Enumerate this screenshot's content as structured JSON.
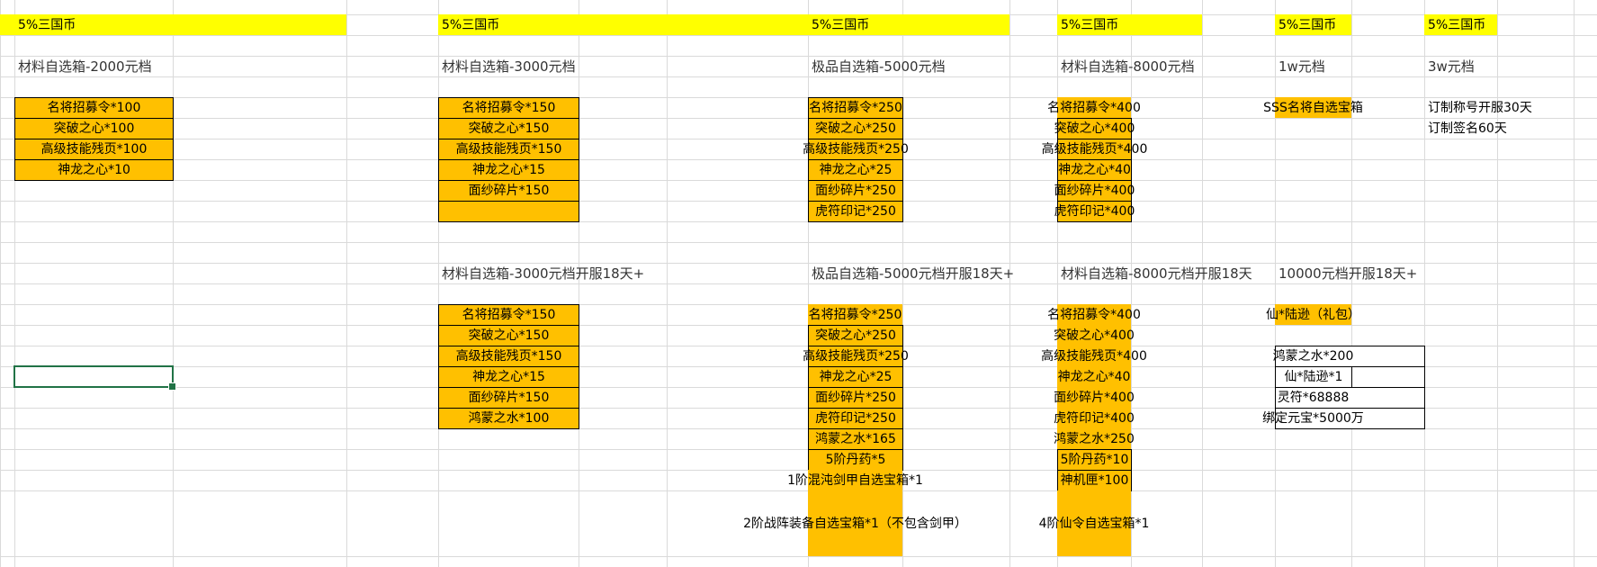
{
  "colors": {
    "highlight_yellow": "#FFFF00",
    "cell_orange": "#FFC000",
    "selection_green": "#217346"
  },
  "top": {
    "coin_labels": [
      "5%三国币",
      "5%三国币",
      "5%三国币",
      "5%三国币",
      "5%三国币",
      "5%三国币"
    ],
    "titles": [
      "材料自选箱-2000元档",
      "材料自选箱-3000元档",
      "极品自选箱-5000元档",
      "材料自选箱-8000元档",
      "1w元档",
      "3w元档"
    ],
    "box_2000": [
      "名将招募令*100",
      "突破之心*100",
      "高级技能残页*100",
      "神龙之心*10"
    ],
    "box_3000": [
      "名将招募令*150",
      "突破之心*150",
      "高级技能残页*150",
      "神龙之心*15",
      "面纱碎片*150",
      ""
    ],
    "box_5000": [
      "名将招募令*250",
      "突破之心*250",
      "高级技能残页*250",
      "神龙之心*25",
      "面纱碎片*250",
      "虎符印记*250"
    ],
    "box_8000": [
      "名将招募令*400",
      "突破之心*400",
      "高级技能残页*400",
      "神龙之心*40",
      "面纱碎片*400",
      "虎符印记*400"
    ],
    "box_1w": [
      "SSS名将自选宝箱"
    ],
    "box_3w": [
      "订制称号开服30天",
      "订制签名60天"
    ]
  },
  "bottom": {
    "titles": [
      "材料自选箱-3000元档开服18天+",
      "极品自选箱-5000元档开服18天+",
      "材料自选箱-8000元档开服18天",
      "10000元档开服18天+"
    ],
    "box_3000": [
      "名将招募令*150",
      "突破之心*150",
      "高级技能残页*150",
      "神龙之心*15",
      "面纱碎片*150",
      "鸿蒙之水*100"
    ],
    "box_5000": [
      "名将招募令*250",
      "突破之心*250",
      "高级技能残页*250",
      "神龙之心*25",
      "面纱碎片*250",
      "虎符印记*250",
      "鸿蒙之水*165",
      "5阶丹药*5",
      "1阶混沌剑甲自选宝箱*1",
      "2阶战阵装备自选宝箱*1（不包含剑甲）"
    ],
    "box_8000": [
      "名将招募令*400",
      "突破之心*400",
      "高级技能残页*400",
      "神龙之心*40",
      "面纱碎片*400",
      "虎符印记*400",
      "鸿蒙之水*250",
      "5阶丹药*10",
      "神机匣*100",
      "4阶仙令自选宝箱*1"
    ],
    "box_10000": {
      "gift": "仙*陆逊（礼包）",
      "items": [
        "鸿蒙之水*200",
        "仙*陆逊*1",
        "灵符*68888",
        "绑定元宝*5000万"
      ]
    }
  }
}
